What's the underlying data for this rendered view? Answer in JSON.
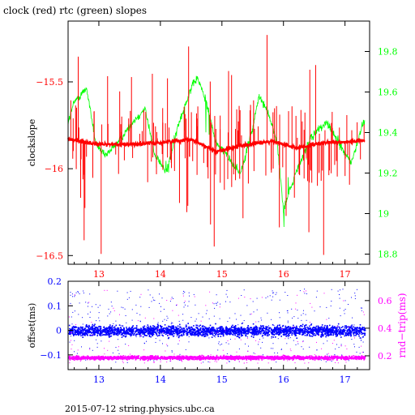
{
  "title": "clock (red) rtc (green) slopes",
  "footer": "2015-07-12 string.physics.ubc.ca",
  "colors": {
    "clock": "#ff0000",
    "rtc": "#00ff00",
    "offset": "#0000ff",
    "rndtrip": "#ff00ff",
    "axis": "#000000"
  },
  "chart_data": [
    {
      "type": "line",
      "title": "clock (red) rtc (green) slopes",
      "xlabel": "",
      "ylabel": "clockslope",
      "xlim": [
        12.5,
        17.4
      ],
      "ylim": [
        -16.55,
        -15.15
      ],
      "y2lim": [
        18.75,
        19.95
      ],
      "x_ticks": [
        13,
        14,
        15,
        16,
        17
      ],
      "y_ticks": [
        -16.5,
        -16,
        -15.5
      ],
      "y_tick_labels": [
        "−16.5",
        "−16",
        "−15.5"
      ],
      "y2_ticks": [
        18.8,
        19,
        19.2,
        19.4,
        19.6,
        19.8
      ],
      "series": [
        {
          "name": "clock",
          "axis": "left",
          "color": "#ff0000",
          "x": [
            12.5,
            13.0,
            13.5,
            14.0,
            14.5,
            14.9,
            15.3,
            15.8,
            16.2,
            16.7,
            17.3
          ],
          "values": [
            -15.83,
            -15.86,
            -15.86,
            -15.85,
            -15.83,
            -15.9,
            -15.87,
            -15.84,
            -15.88,
            -15.85,
            -15.84
          ]
        },
        {
          "name": "rtc",
          "axis": "right",
          "color": "#00ff00",
          "x": [
            12.5,
            12.6,
            12.8,
            12.95,
            13.1,
            13.3,
            13.55,
            13.75,
            13.9,
            14.1,
            14.3,
            14.5,
            14.6,
            14.75,
            14.9,
            15.05,
            15.3,
            15.5,
            15.6,
            15.75,
            15.9,
            16.0,
            16.2,
            16.45,
            16.7,
            16.9,
            17.1,
            17.3
          ],
          "values": [
            19.45,
            19.55,
            19.62,
            19.35,
            19.28,
            19.35,
            19.45,
            19.52,
            19.3,
            19.2,
            19.45,
            19.62,
            19.67,
            19.55,
            19.35,
            19.3,
            19.2,
            19.42,
            19.58,
            19.5,
            19.35,
            19.02,
            19.2,
            19.38,
            19.45,
            19.35,
            19.25,
            19.45
          ]
        }
      ]
    },
    {
      "type": "scatter",
      "xlabel": "",
      "ylabel": "offset(ms)",
      "y2label": "rnd−trip(ms)",
      "xlim": [
        12.5,
        17.4
      ],
      "ylim": [
        -0.16,
        0.2
      ],
      "y2lim": [
        0.1,
        0.74
      ],
      "x_ticks": [
        13,
        14,
        15,
        16,
        17
      ],
      "y_ticks": [
        -0.1,
        0,
        0.1,
        0.2
      ],
      "y_tick_labels": [
        "−0.1",
        "0",
        "0.1",
        "0.2"
      ],
      "y2_ticks": [
        0.2,
        0.4,
        0.6
      ],
      "series": [
        {
          "name": "offset",
          "axis": "left",
          "color": "#0000ff",
          "band_center": 0.0,
          "band_halfwidth": 0.03,
          "outlier_range": [
            -0.13,
            0.17
          ]
        },
        {
          "name": "rnd-trip",
          "axis": "right",
          "color": "#ff00ff",
          "band_center": 0.19,
          "band_halfwidth": 0.02,
          "outlier_range": [
            0.15,
            0.68
          ]
        }
      ]
    }
  ]
}
